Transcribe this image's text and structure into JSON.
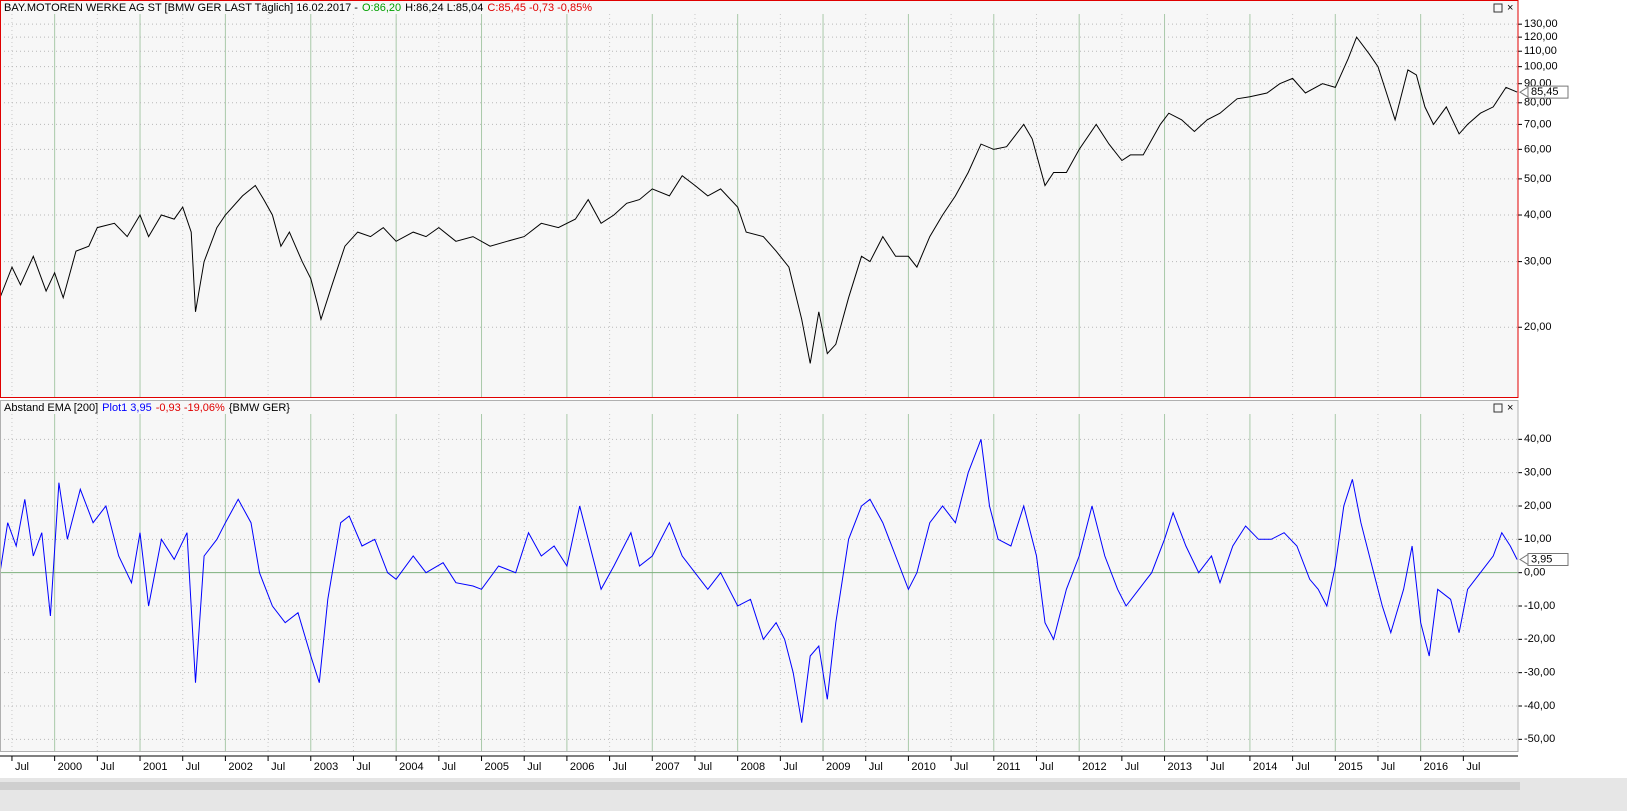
{
  "chart_data": [
    {
      "type": "line",
      "scale": "log",
      "frame_color": "#e00000",
      "header": [
        {
          "text": "BAY.MOTOREN WERKE AG ST [BMW GER LAST Täglich] 16.02.2017 -",
          "color": "#000000"
        },
        {
          "text": "O:86,20",
          "color": "#00a000"
        },
        {
          "text": "H:86,24 L:85,04",
          "color": "#000000"
        },
        {
          "text": "C:85,45 -0,73 -0,85%",
          "color": "#e00000"
        }
      ],
      "xlim": [
        1999.36,
        2017.14
      ],
      "ylim": [
        13,
        150
      ],
      "yticks": [
        {
          "value": 20,
          "label": "20,00"
        },
        {
          "value": 30,
          "label": "30,00"
        },
        {
          "value": 40,
          "label": "40,00"
        },
        {
          "value": 50,
          "label": "50,00"
        },
        {
          "value": 60,
          "label": "60,00"
        },
        {
          "value": 70,
          "label": "70,00"
        },
        {
          "value": 80,
          "label": "80,00"
        },
        {
          "value": 90,
          "label": "90,00"
        },
        {
          "value": 100,
          "label": "100,00"
        },
        {
          "value": 110,
          "label": "110,00"
        },
        {
          "value": 120,
          "label": "120,00"
        },
        {
          "value": 130,
          "label": "130,00"
        }
      ],
      "x": [
        1999.36,
        1999.5,
        1999.6,
        1999.75,
        1999.9,
        2000.0,
        2000.1,
        2000.25,
        2000.4,
        2000.5,
        2000.7,
        2000.85,
        2001.0,
        2001.1,
        2001.25,
        2001.4,
        2001.5,
        2001.6,
        2001.65,
        2001.75,
        2001.9,
        2002.0,
        2002.2,
        2002.35,
        2002.45,
        2002.55,
        2002.65,
        2002.75,
        2002.9,
        2003.0,
        2003.08,
        2003.12,
        2003.25,
        2003.4,
        2003.55,
        2003.7,
        2003.85,
        2004.0,
        2004.2,
        2004.35,
        2004.5,
        2004.7,
        2004.9,
        2005.1,
        2005.3,
        2005.5,
        2005.7,
        2005.9,
        2006.1,
        2006.25,
        2006.4,
        2006.55,
        2006.7,
        2006.85,
        2007.0,
        2007.2,
        2007.35,
        2007.5,
        2007.65,
        2007.8,
        2008.0,
        2008.1,
        2008.3,
        2008.45,
        2008.6,
        2008.75,
        2008.85,
        2008.95,
        2009.05,
        2009.15,
        2009.3,
        2009.45,
        2009.55,
        2009.7,
        2009.85,
        2010.0,
        2010.1,
        2010.25,
        2010.4,
        2010.55,
        2010.7,
        2010.85,
        2011.0,
        2011.15,
        2011.35,
        2011.45,
        2011.6,
        2011.7,
        2011.85,
        2012.0,
        2012.2,
        2012.35,
        2012.5,
        2012.6,
        2012.75,
        2012.95,
        2013.05,
        2013.2,
        2013.35,
        2013.5,
        2013.65,
        2013.85,
        2014.0,
        2014.2,
        2014.35,
        2014.5,
        2014.65,
        2014.85,
        2015.0,
        2015.15,
        2015.25,
        2015.4,
        2015.5,
        2015.6,
        2015.7,
        2015.85,
        2015.95,
        2016.05,
        2016.15,
        2016.3,
        2016.45,
        2016.55,
        2016.7,
        2016.85,
        2017.0,
        2017.13
      ],
      "series": [
        {
          "name": "BAY.MOTOREN WERKE AG ST",
          "color": "#000000",
          "values": [
            24,
            29,
            26,
            31,
            25,
            28,
            24,
            32,
            33,
            37,
            38,
            35,
            40,
            35,
            40,
            39,
            42,
            36,
            22,
            30,
            37,
            40,
            45,
            48,
            44,
            40,
            33,
            36,
            30,
            27,
            23,
            21,
            26,
            33,
            36,
            35,
            37,
            34,
            36,
            35,
            37,
            34,
            35,
            33,
            34,
            35,
            38,
            37,
            39,
            44,
            38,
            40,
            43,
            44,
            47,
            45,
            51,
            48,
            45,
            47,
            42,
            36,
            35,
            32,
            29,
            21,
            16,
            22,
            17,
            18,
            24,
            31,
            30,
            35,
            31,
            31,
            29,
            35,
            40,
            45,
            52,
            62,
            60,
            61,
            70,
            64,
            48,
            52,
            52,
            60,
            70,
            62,
            56,
            58,
            58,
            70,
            75,
            72,
            67,
            72,
            75,
            82,
            83,
            85,
            90,
            93,
            85,
            90,
            88,
            105,
            120,
            108,
            100,
            85,
            72,
            98,
            95,
            78,
            70,
            78,
            66,
            70,
            75,
            78,
            88,
            85.45
          ],
          "last_value": {
            "value": 85.45,
            "label": "85,45"
          }
        }
      ]
    },
    {
      "type": "line",
      "scale": "linear",
      "frame_color": "#b0b0b0",
      "header": [
        {
          "text": "Abstand EMA [200]",
          "color": "#000000"
        },
        {
          "text": "Plot1 3,95",
          "color": "#0000ff"
        },
        {
          "text": "-0,93 -19,06%",
          "color": "#e00000"
        },
        {
          "text": "{BMW GER}",
          "color": "#000000"
        }
      ],
      "xlim": [
        1999.36,
        2017.14
      ],
      "ylim": [
        -53.5,
        51.5
      ],
      "yticks": [
        {
          "value": -50,
          "label": "-50,00"
        },
        {
          "value": -40,
          "label": "-40,00"
        },
        {
          "value": -30,
          "label": "-30,00"
        },
        {
          "value": -20,
          "label": "-20,00"
        },
        {
          "value": -10,
          "label": "-10,00"
        },
        {
          "value": 0,
          "label": "0,00"
        },
        {
          "value": 10,
          "label": "10,00"
        },
        {
          "value": 20,
          "label": "20,00"
        },
        {
          "value": 30,
          "label": "30,00"
        },
        {
          "value": 40,
          "label": "40,00"
        }
      ],
      "xticks": [
        {
          "value": 1999.5,
          "label": "Jul"
        },
        2000,
        {
          "value": 2000.5,
          "label": "Jul"
        },
        2001,
        {
          "value": 2001.5,
          "label": "Jul"
        },
        2002,
        {
          "value": 2002.5,
          "label": "Jul"
        },
        2003,
        {
          "value": 2003.5,
          "label": "Jul"
        },
        2004,
        {
          "value": 2004.5,
          "label": "Jul"
        },
        2005,
        {
          "value": 2005.5,
          "label": "Jul"
        },
        2006,
        {
          "value": 2006.5,
          "label": "Jul"
        },
        2007,
        {
          "value": 2007.5,
          "label": "Jul"
        },
        2008,
        {
          "value": 2008.5,
          "label": "Jul"
        },
        2009,
        {
          "value": 2009.5,
          "label": "Jul"
        },
        2010,
        {
          "value": 2010.5,
          "label": "Jul"
        },
        2011,
        {
          "value": 2011.5,
          "label": "Jul"
        },
        2012,
        {
          "value": 2012.5,
          "label": "Jul"
        },
        2013,
        {
          "value": 2013.5,
          "label": "Jul"
        },
        2014,
        {
          "value": 2014.5,
          "label": "Jul"
        },
        2015,
        {
          "value": 2015.5,
          "label": "Jul"
        },
        2016,
        {
          "value": 2016.5,
          "label": "Jul"
        }
      ],
      "x": [
        1999.36,
        1999.45,
        1999.55,
        1999.65,
        1999.75,
        1999.85,
        1999.95,
        2000.05,
        2000.15,
        2000.3,
        2000.45,
        2000.6,
        2000.75,
        2000.9,
        2001.0,
        2001.1,
        2001.25,
        2001.4,
        2001.55,
        2001.65,
        2001.75,
        2001.9,
        2002.0,
        2002.15,
        2002.3,
        2002.4,
        2002.55,
        2002.7,
        2002.85,
        2003.0,
        2003.1,
        2003.2,
        2003.35,
        2003.45,
        2003.6,
        2003.75,
        2003.9,
        2004.0,
        2004.2,
        2004.35,
        2004.55,
        2004.7,
        2004.9,
        2005.0,
        2005.2,
        2005.4,
        2005.55,
        2005.7,
        2005.85,
        2006.0,
        2006.15,
        2006.3,
        2006.4,
        2006.55,
        2006.75,
        2006.85,
        2007.0,
        2007.2,
        2007.35,
        2007.5,
        2007.65,
        2007.8,
        2008.0,
        2008.15,
        2008.3,
        2008.45,
        2008.55,
        2008.65,
        2008.75,
        2008.85,
        2008.95,
        2009.05,
        2009.15,
        2009.3,
        2009.45,
        2009.55,
        2009.7,
        2009.85,
        2010.0,
        2010.1,
        2010.25,
        2010.4,
        2010.55,
        2010.7,
        2010.85,
        2010.95,
        2011.05,
        2011.2,
        2011.35,
        2011.5,
        2011.6,
        2011.7,
        2011.85,
        2012.0,
        2012.15,
        2012.3,
        2012.45,
        2012.55,
        2012.7,
        2012.85,
        2013.0,
        2013.1,
        2013.25,
        2013.4,
        2013.55,
        2013.65,
        2013.8,
        2013.95,
        2014.1,
        2014.25,
        2014.4,
        2014.55,
        2014.7,
        2014.8,
        2014.9,
        2015.0,
        2015.1,
        2015.2,
        2015.3,
        2015.45,
        2015.55,
        2015.65,
        2015.8,
        2015.9,
        2016.0,
        2016.1,
        2016.2,
        2016.35,
        2016.45,
        2016.55,
        2016.7,
        2016.85,
        2016.95,
        2017.05,
        2017.13
      ],
      "series": [
        {
          "name": "Plot1",
          "color": "#0000ff",
          "values": [
            0,
            15,
            8,
            22,
            5,
            12,
            -13,
            27,
            10,
            25,
            15,
            20,
            5,
            -3,
            12,
            -10,
            10,
            4,
            12,
            -33,
            5,
            10,
            15,
            22,
            15,
            0,
            -10,
            -15,
            -12,
            -25,
            -33,
            -8,
            15,
            17,
            8,
            10,
            0,
            -2,
            5,
            0,
            3,
            -3,
            -4,
            -5,
            2,
            0,
            12,
            5,
            8,
            2,
            20,
            5,
            -5,
            2,
            12,
            2,
            5,
            15,
            5,
            0,
            -5,
            0,
            -10,
            -8,
            -20,
            -15,
            -20,
            -30,
            -45,
            -25,
            -22,
            -38,
            -15,
            10,
            20,
            22,
            15,
            5,
            -5,
            0,
            15,
            20,
            15,
            30,
            40,
            20,
            10,
            8,
            20,
            5,
            -15,
            -20,
            -5,
            5,
            20,
            5,
            -5,
            -10,
            -5,
            0,
            10,
            18,
            8,
            0,
            5,
            -3,
            8,
            14,
            10,
            10,
            12,
            8,
            -2,
            -5,
            -10,
            2,
            20,
            28,
            15,
            0,
            -10,
            -18,
            -5,
            8,
            -15,
            -25,
            -5,
            -8,
            -18,
            -5,
            0,
            5,
            12,
            8,
            3.95
          ],
          "last_value": {
            "value": 3.95,
            "label": "3,95"
          }
        }
      ]
    }
  ]
}
